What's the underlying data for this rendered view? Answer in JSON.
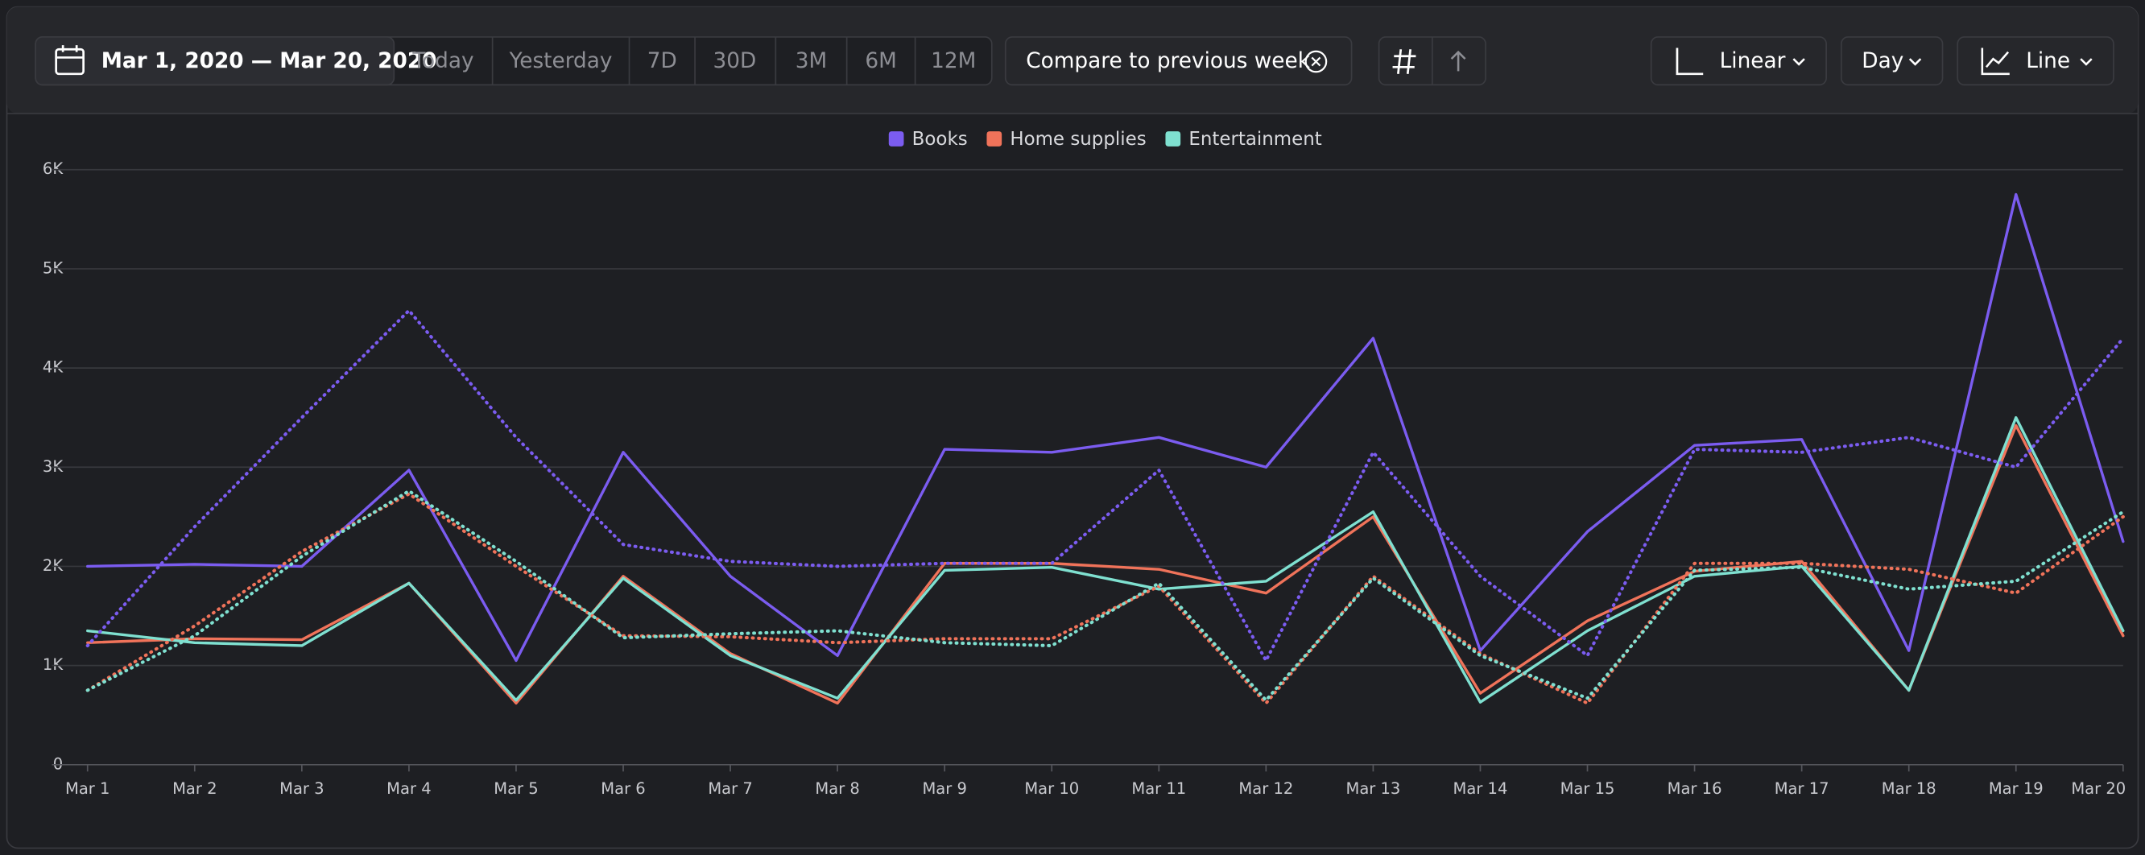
{
  "toolbar": {
    "date_range": "Mar 1, 2020 — Mar 20, 2020",
    "presets": [
      "Today",
      "Yesterday",
      "7D",
      "30D",
      "3M",
      "6M",
      "12M"
    ],
    "compare": "Compare to previous week",
    "scale": "Linear",
    "interval": "Day",
    "chart_kind": "Line"
  },
  "chart_data": {
    "type": "line",
    "categories": [
      "Mar 1",
      "Mar 2",
      "Mar 3",
      "Mar 4",
      "Mar 5",
      "Mar 6",
      "Mar 7",
      "Mar 8",
      "Mar 9",
      "Mar 10",
      "Mar 11",
      "Mar 12",
      "Mar 13",
      "Mar 14",
      "Mar 15",
      "Mar 16",
      "Mar 17",
      "Mar 18",
      "Mar 19",
      "Mar 20"
    ],
    "ylim": [
      0,
      6000
    ],
    "yticks": [
      0,
      {
        "value": 1000,
        "label": "1K"
      },
      {
        "value": 2000,
        "label": "2K"
      },
      {
        "value": 3000,
        "label": "3K"
      },
      {
        "value": 4000,
        "label": "4K"
      },
      {
        "value": 5000,
        "label": "5K"
      },
      {
        "value": 6000,
        "label": "6K"
      }
    ],
    "grid": true,
    "legend": "top",
    "series": [
      {
        "name": "Books",
        "color": "#7b5cf0",
        "values": [
          2000,
          2020,
          2000,
          2970,
          1050,
          3150,
          1900,
          1100,
          3180,
          3150,
          3300,
          3000,
          4300,
          1150,
          2350,
          3220,
          3280,
          1150,
          5750,
          2250
        ]
      },
      {
        "name": "Home supplies",
        "color": "#f0735a",
        "values": [
          1230,
          1270,
          1260,
          1830,
          620,
          1900,
          1120,
          620,
          2030,
          2030,
          1970,
          1730,
          2500,
          720,
          1450,
          1950,
          2050,
          750,
          3420,
          1300
        ]
      },
      {
        "name": "Entertainment",
        "color": "#7fe0d0",
        "values": [
          1350,
          1230,
          1200,
          1830,
          650,
          1880,
          1100,
          670,
          1960,
          1990,
          1770,
          1850,
          2550,
          630,
          1350,
          1900,
          2000,
          750,
          3500,
          1350
        ]
      },
      {
        "color": "#7b5cf0",
        "dashed": true,
        "values": [
          1200,
          2400,
          3500,
          4580,
          3300,
          2220,
          2050,
          2000,
          2030,
          2030,
          2970,
          1050,
          3150,
          1900,
          1100,
          3180,
          3150,
          3300,
          3000,
          4300
        ]
      },
      {
        "color": "#f0735a",
        "dashed": true,
        "values": [
          750,
          1400,
          2150,
          2730,
          2000,
          1300,
          1290,
          1230,
          1270,
          1270,
          1800,
          620,
          1900,
          1120,
          620,
          2030,
          2030,
          1970,
          1730,
          2500
        ]
      },
      {
        "color": "#7fe0d0",
        "dashed": true,
        "values": [
          750,
          1300,
          2100,
          2760,
          2050,
          1280,
          1320,
          1350,
          1230,
          1200,
          1830,
          650,
          1880,
          1100,
          670,
          1960,
          1990,
          1770,
          1850,
          2550
        ]
      }
    ]
  }
}
